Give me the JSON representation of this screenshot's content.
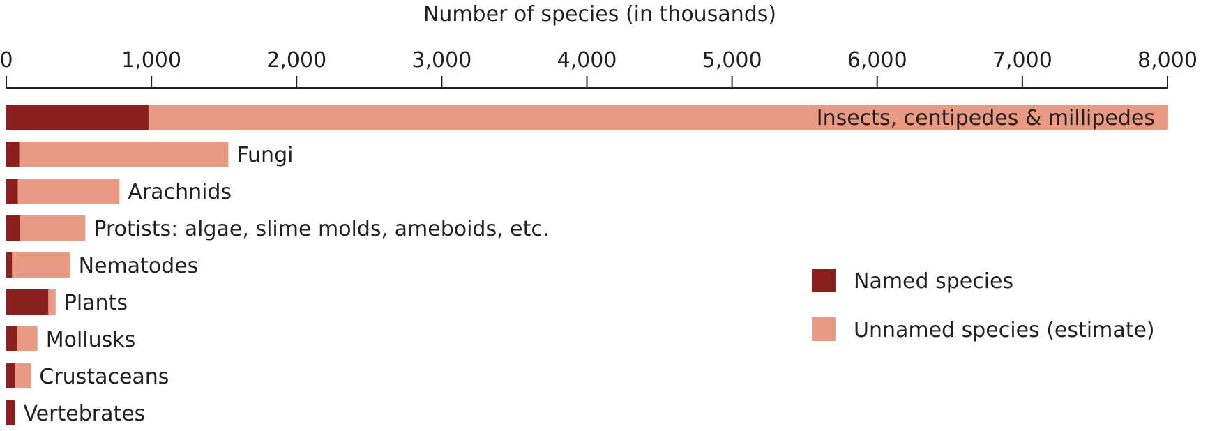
{
  "chart_data": {
    "type": "bar",
    "orientation": "horizontal",
    "stacked": true,
    "xlabel": "Number of species (in thousands)",
    "xlim": [
      0,
      8000
    ],
    "ticks": [
      0,
      1000,
      2000,
      3000,
      4000,
      5000,
      6000,
      7000,
      8000
    ],
    "tick_labels": [
      "0",
      "1,000",
      "2,000",
      "3,000",
      "4,000",
      "5,000",
      "6,000",
      "7,000",
      "8,000"
    ],
    "categories": [
      "Insects, centipedes & millipedes",
      "Fungi",
      "Arachnids",
      "Protists: algae, slime molds, ameboids, etc.",
      "Nematodes",
      "Plants",
      "Mollusks",
      "Crustaceans",
      "Vertebrates"
    ],
    "series": [
      {
        "name": "Named species",
        "color": "#8b1f1d",
        "values": [
          980,
          90,
          80,
          95,
          40,
          290,
          75,
          60,
          60
        ]
      },
      {
        "name": "Unnamed species (estimate)",
        "color": "#e99a82",
        "values": [
          7020,
          1440,
          700,
          450,
          400,
          50,
          140,
          110,
          0
        ]
      }
    ],
    "label_positions": [
      "inside-right",
      "outside",
      "outside",
      "outside",
      "outside",
      "outside",
      "outside",
      "outside",
      "outside"
    ],
    "legend": {
      "position": "right",
      "entries": [
        "Named species",
        "Unnamed species (estimate)"
      ]
    },
    "grid": false
  }
}
